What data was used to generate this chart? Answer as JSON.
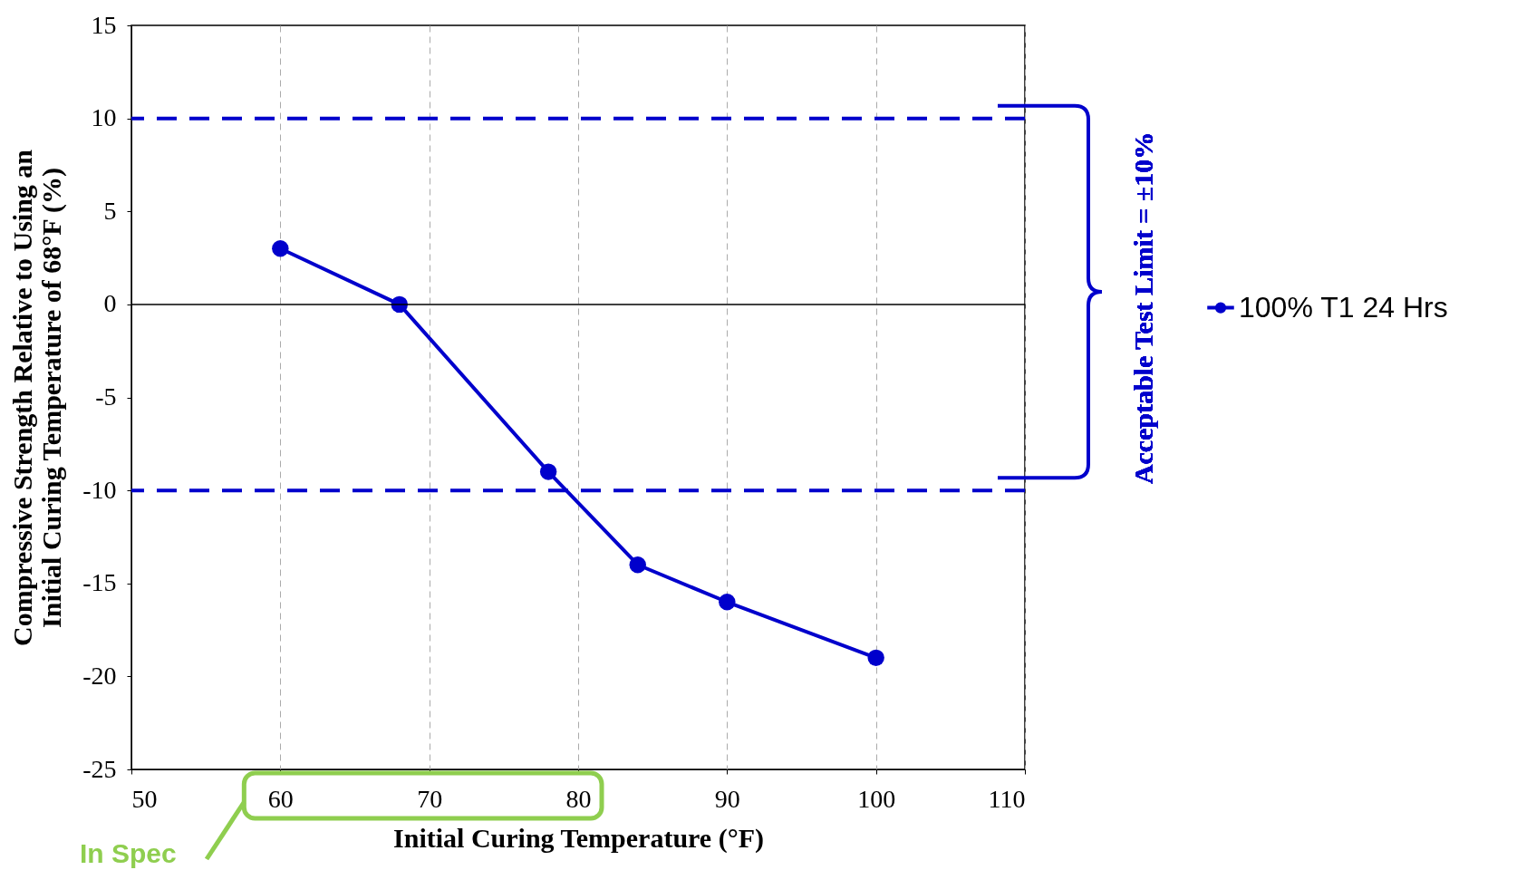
{
  "chart_data": {
    "type": "line",
    "xlabel": "Initial Curing Temperature (°F)",
    "ylabel": "Compressive Strength Relative to Using an\nInitial Curing Temperature of 68°F (%)",
    "x": [
      60,
      68,
      78,
      84,
      90,
      100
    ],
    "series": [
      {
        "name": "100% T1 24 Hrs",
        "color": "#0000cc",
        "values": [
          3,
          0,
          -9,
          -14,
          -16,
          -19
        ]
      }
    ],
    "xlim": [
      50,
      110
    ],
    "xticks": [
      50,
      60,
      70,
      80,
      90,
      100,
      110
    ],
    "ylim": [
      -25,
      15
    ],
    "yticks": [
      -25,
      -20,
      -15,
      -10,
      -5,
      0,
      5,
      10,
      15
    ],
    "ref_lines": [
      {
        "axis": "y",
        "value": 10,
        "color": "#0000cc",
        "line_style": "dashed"
      },
      {
        "axis": "y",
        "value": -10,
        "color": "#0000cc",
        "line_style": "dashed"
      },
      {
        "axis": "y",
        "value": 0,
        "color": "#000000",
        "line_style": "solid"
      }
    ],
    "annotations": [
      "Acceptable Test Limit = ±10%",
      "In Spec"
    ],
    "grid": "x",
    "legend": "right",
    "marker": "circle",
    "line_style": "solid"
  }
}
